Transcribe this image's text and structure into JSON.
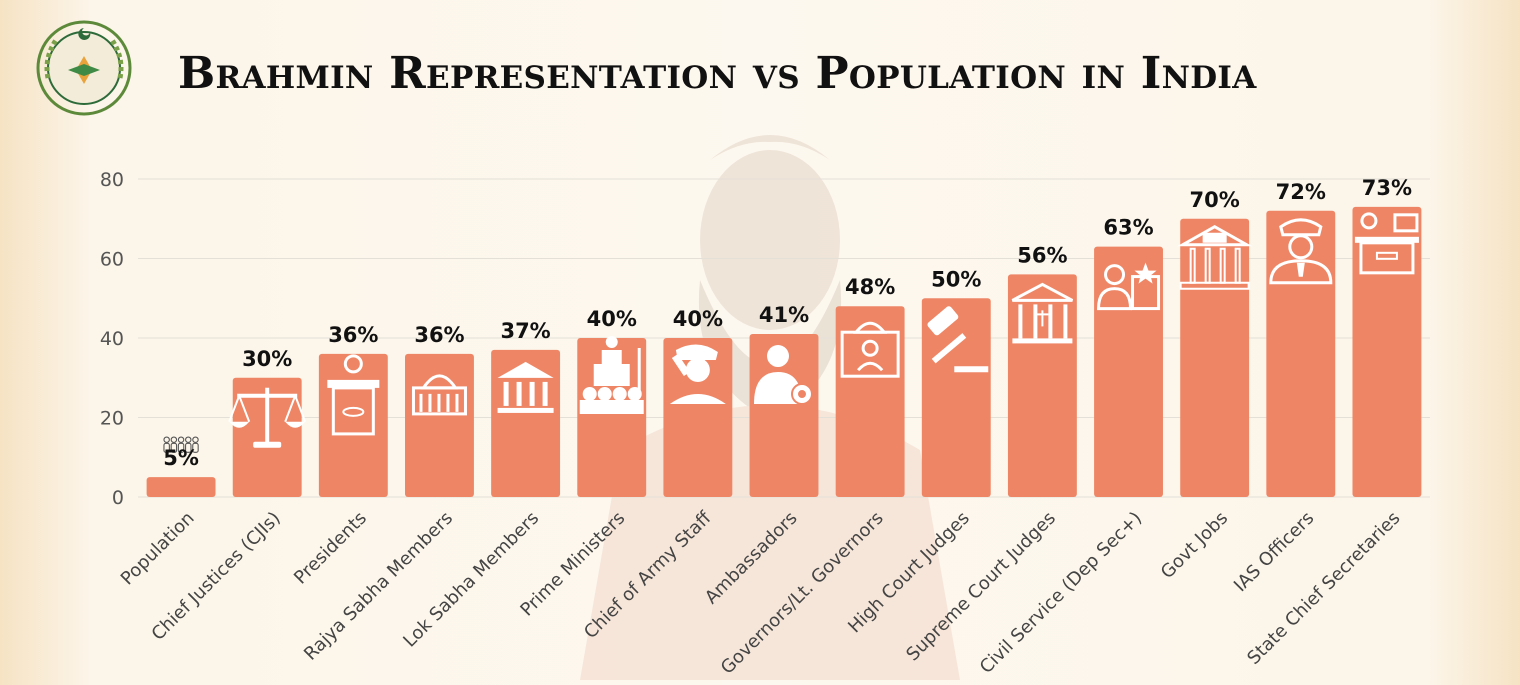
{
  "header": {
    "title": "Brahmin Representation vs Population in India",
    "logo_icon": "cisss-logo-icon"
  },
  "colors": {
    "bar": "#ee8666",
    "icon": "#ffffff",
    "grid": "#e4e0d8"
  },
  "chart_data": {
    "type": "bar",
    "title": "Brahmin Representation vs Population in India",
    "xlabel": "",
    "ylabel": "",
    "ylim": [
      0,
      80
    ],
    "yticks": [
      0,
      20,
      40,
      60,
      80
    ],
    "grid": true,
    "categories": [
      "Population",
      "Chief Justices (CJIs)",
      "Presidents",
      "Rajya Sabha Members",
      "Lok Sabha Members",
      "Prime Ministers",
      "Chief of Army Staff",
      "Ambassadors",
      "Governors/Lt. Governors",
      "High Court Judges",
      "Supreme Court Judges",
      "Civil Service (Dep Sec+)",
      "Govt Jobs",
      "IAS Officers",
      "State Chief Secretaries"
    ],
    "values": [
      5,
      30,
      36,
      36,
      37,
      40,
      40,
      41,
      48,
      50,
      56,
      63,
      70,
      72,
      73
    ],
    "data_labels": [
      "5%",
      "30%",
      "36%",
      "36%",
      "37%",
      "40%",
      "40%",
      "41%",
      "48%",
      "50%",
      "56%",
      "63%",
      "70%",
      "72%",
      "73%"
    ],
    "icons": [
      "crowd-icon",
      "scales-of-justice-icon",
      "podium-speaker-icon",
      "parliament-dome-icon",
      "pillared-building-icon",
      "prime-minister-podium-icon",
      "saluting-soldier-icon",
      "ambassador-award-icon",
      "governor-capitol-icon",
      "gavel-icon",
      "supreme-court-icon",
      "civil-servant-office-icon",
      "gov-building-icon",
      "police-officer-icon",
      "secretary-desk-icon"
    ]
  }
}
